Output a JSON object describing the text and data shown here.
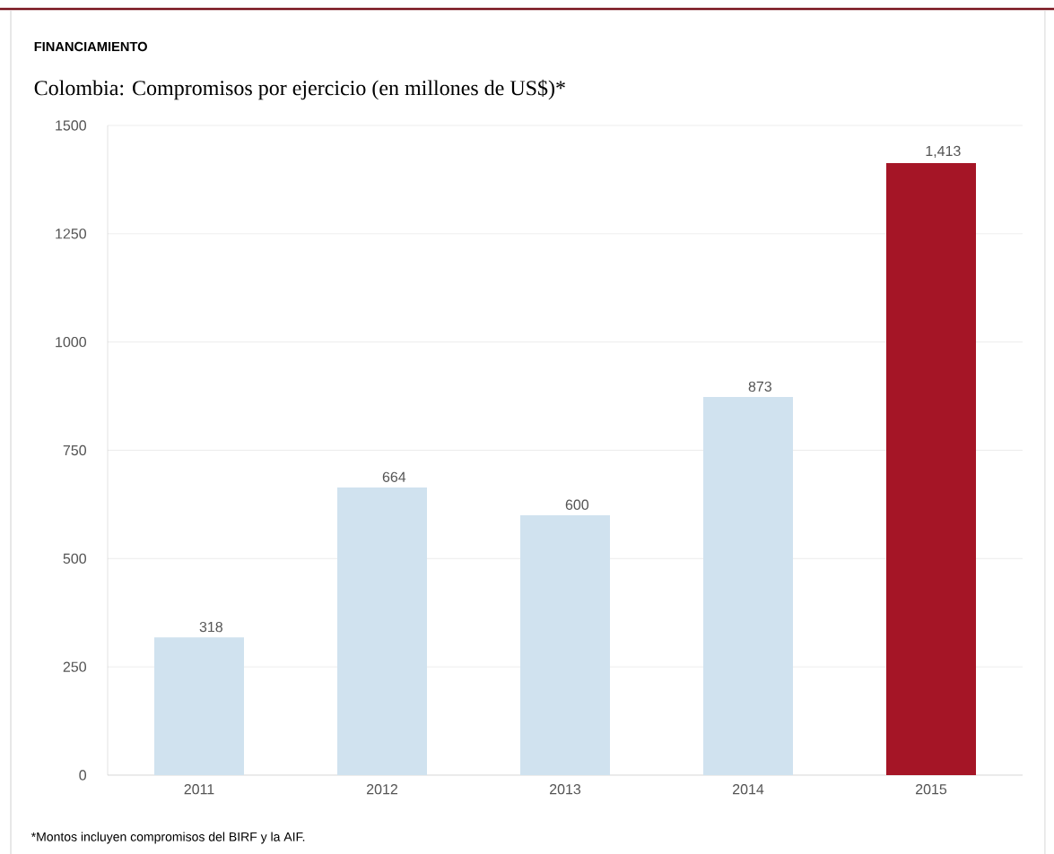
{
  "chart_data": {
    "type": "bar",
    "title": "FINANCIAMIENTO",
    "subtitle": "Colombia: Compromisos por ejercicio (en millones de US$)*",
    "categories": [
      "2011",
      "2012",
      "2013",
      "2014",
      "2015"
    ],
    "values": [
      318,
      664,
      600,
      873,
      1413
    ],
    "value_labels": [
      "318",
      "664",
      "600",
      "873",
      "1,413"
    ],
    "colors": [
      "#d0e2ef",
      "#d0e2ef",
      "#d0e2ef",
      "#d0e2ef",
      "#a51526"
    ],
    "ylim": [
      0,
      1500
    ],
    "yticks": [
      0,
      250,
      500,
      750,
      1000,
      1250,
      1500
    ],
    "grid": "y",
    "annotations": [
      "*Montos incluyen compromisos del BIRF y la AIF."
    ]
  }
}
